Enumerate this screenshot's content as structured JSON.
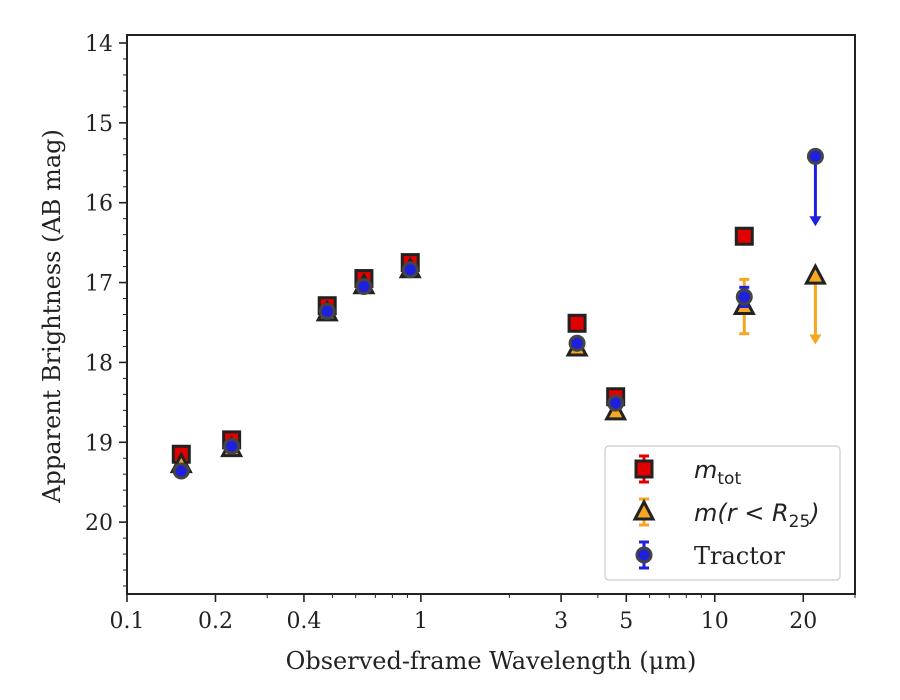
{
  "chart_data": {
    "type": "scatter",
    "xlabel": "Observed-frame Wavelength (μm)",
    "ylabel": "Apparent Brightness (AB mag)",
    "xscale": "log",
    "xlim": [
      0.1,
      30
    ],
    "ylim": [
      20.9,
      13.9
    ],
    "y_inverted": true,
    "x_ticks": [
      0.1,
      0.2,
      0.4,
      1,
      3,
      5,
      10,
      20
    ],
    "x_tick_labels": [
      "0.1",
      "0.2",
      "0.4",
      "1",
      "3",
      "5",
      "10",
      "20"
    ],
    "y_ticks": [
      14,
      15,
      16,
      17,
      18,
      19,
      20
    ],
    "y_tick_labels": [
      "14",
      "15",
      "16",
      "17",
      "18",
      "19",
      "20"
    ],
    "grid": false,
    "legend_position": "bottom-right",
    "series": [
      {
        "name": "m_tot",
        "legend_main": "m",
        "legend_sub": "tot",
        "marker": "square",
        "color": "#e00000",
        "edge": "#222222",
        "points": [
          {
            "x": 0.153,
            "y": 19.15,
            "err": 0.05
          },
          {
            "x": 0.227,
            "y": 18.97,
            "err": 0.05
          },
          {
            "x": 0.48,
            "y": 17.29,
            "err": 0.04
          },
          {
            "x": 0.64,
            "y": 16.95,
            "err": 0.04
          },
          {
            "x": 0.92,
            "y": 16.75,
            "err": 0.04
          },
          {
            "x": 3.4,
            "y": 17.51,
            "err": 0.05
          },
          {
            "x": 4.6,
            "y": 18.43,
            "err": 0.06
          },
          {
            "x": 12.6,
            "y": 16.42,
            "err": 0.07
          }
        ]
      },
      {
        "name": "m(r<R25)",
        "legend_main": "m(r < R",
        "legend_sub": "25",
        "legend_tail": ")",
        "marker": "triangle",
        "color": "#f5a623",
        "edge": "#222222",
        "points": [
          {
            "x": 0.153,
            "y": 19.28,
            "err": 0.04
          },
          {
            "x": 0.227,
            "y": 19.08,
            "err": 0.04
          },
          {
            "x": 0.48,
            "y": 17.38,
            "err": 0.03
          },
          {
            "x": 0.64,
            "y": 17.04,
            "err": 0.03
          },
          {
            "x": 0.92,
            "y": 16.84,
            "err": 0.03
          },
          {
            "x": 3.4,
            "y": 17.82,
            "err": 0.05
          },
          {
            "x": 4.6,
            "y": 18.62,
            "err": 0.06
          },
          {
            "x": 12.6,
            "y": 17.3,
            "err": 0.34
          },
          {
            "x": 22.0,
            "y": 16.92,
            "upper_limit_to": 17.75
          }
        ]
      },
      {
        "name": "Tractor",
        "marker": "circle",
        "color": "#1f1fe0",
        "edge": "#444444",
        "points": [
          {
            "x": 0.153,
            "y": 19.36,
            "err": 0.06
          },
          {
            "x": 0.227,
            "y": 19.05,
            "err": 0.05
          },
          {
            "x": 0.48,
            "y": 17.36,
            "err": 0.03
          },
          {
            "x": 0.64,
            "y": 17.05,
            "err": 0.03
          },
          {
            "x": 0.92,
            "y": 16.84,
            "err": 0.03
          },
          {
            "x": 3.4,
            "y": 17.76,
            "err": 0.05
          },
          {
            "x": 4.6,
            "y": 18.51,
            "err": 0.06
          },
          {
            "x": 12.6,
            "y": 17.18,
            "err": 0.12
          },
          {
            "x": 22.0,
            "y": 15.42,
            "upper_limit_to": 16.27
          }
        ]
      }
    ]
  }
}
